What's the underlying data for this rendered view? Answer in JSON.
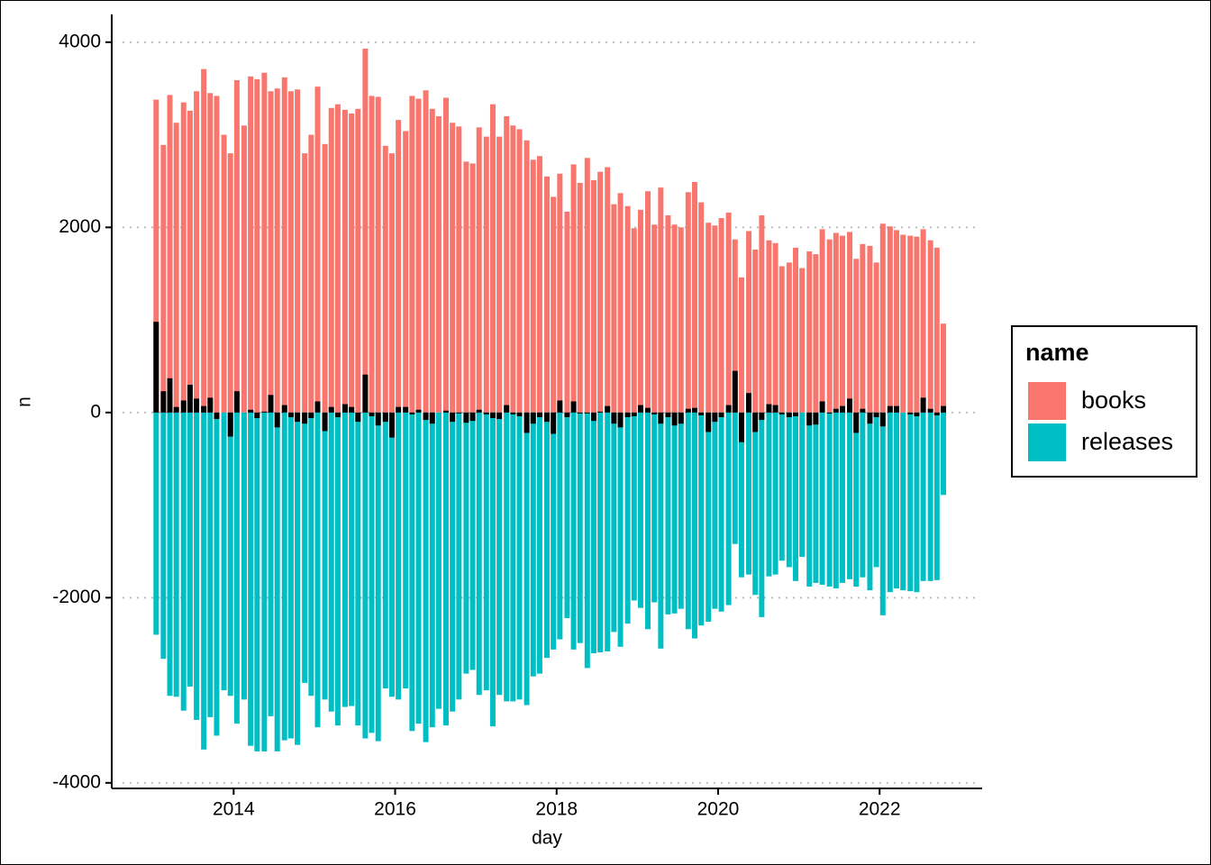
{
  "chart_data": {
    "type": "bar",
    "stacking": "diverging",
    "x_label": "day",
    "y_label": "n",
    "legend_title": "name",
    "x": [
      2013.04,
      2013.13,
      2013.21,
      2013.29,
      2013.38,
      2013.46,
      2013.54,
      2013.63,
      2013.71,
      2013.79,
      2013.88,
      2013.96,
      2014.04,
      2014.13,
      2014.21,
      2014.29,
      2014.38,
      2014.46,
      2014.54,
      2014.63,
      2014.71,
      2014.79,
      2014.88,
      2014.96,
      2015.04,
      2015.13,
      2015.21,
      2015.29,
      2015.38,
      2015.46,
      2015.54,
      2015.63,
      2015.71,
      2015.79,
      2015.88,
      2015.96,
      2016.04,
      2016.13,
      2016.21,
      2016.29,
      2016.38,
      2016.46,
      2016.54,
      2016.63,
      2016.71,
      2016.79,
      2016.88,
      2016.96,
      2017.04,
      2017.13,
      2017.21,
      2017.29,
      2017.38,
      2017.46,
      2017.54,
      2017.63,
      2017.71,
      2017.79,
      2017.88,
      2017.96,
      2018.04,
      2018.13,
      2018.21,
      2018.29,
      2018.38,
      2018.46,
      2018.54,
      2018.63,
      2018.71,
      2018.79,
      2018.88,
      2018.96,
      2019.04,
      2019.13,
      2019.21,
      2019.29,
      2019.38,
      2019.46,
      2019.54,
      2019.63,
      2019.71,
      2019.79,
      2019.88,
      2019.96,
      2020.04,
      2020.13,
      2020.21,
      2020.29,
      2020.38,
      2020.46,
      2020.54,
      2020.63,
      2020.71,
      2020.79,
      2020.88,
      2020.96,
      2021.04,
      2021.13,
      2021.21,
      2021.29,
      2021.38,
      2021.46,
      2021.54,
      2021.63,
      2021.71,
      2021.79,
      2021.88,
      2021.96,
      2022.04,
      2022.13,
      2022.21,
      2022.29,
      2022.38,
      2022.46,
      2022.54,
      2022.63,
      2022.71,
      2022.79
    ],
    "series": [
      {
        "name": "books",
        "color": "#f8766d",
        "values": [
          3380,
          2890,
          3430,
          3130,
          3350,
          3260,
          3470,
          3710,
          3450,
          3420,
          3000,
          2800,
          3590,
          3100,
          3630,
          3600,
          3670,
          3470,
          3500,
          3620,
          3470,
          3490,
          2800,
          3000,
          3520,
          2900,
          3290,
          3330,
          3270,
          3230,
          3280,
          3930,
          3420,
          3410,
          2880,
          2800,
          3160,
          3040,
          3420,
          3390,
          3480,
          3280,
          3200,
          3400,
          3130,
          3090,
          2710,
          2690,
          3080,
          2980,
          3330,
          2980,
          3200,
          3100,
          3060,
          2940,
          2730,
          2770,
          2550,
          2330,
          2580,
          2170,
          2680,
          2480,
          2750,
          2510,
          2600,
          2650,
          2250,
          2370,
          2230,
          1990,
          2190,
          2390,
          2030,
          2430,
          2130,
          2030,
          2000,
          2380,
          2490,
          2270,
          2050,
          2020,
          2100,
          2160,
          1870,
          1460,
          1960,
          1760,
          2130,
          1860,
          1830,
          1580,
          1620,
          1780,
          1560,
          1740,
          1710,
          1980,
          1870,
          1940,
          1910,
          1950,
          1660,
          1820,
          1800,
          1620,
          2040,
          2010,
          1970,
          1920,
          1910,
          1900,
          1980,
          1860,
          1780,
          960
        ]
      },
      {
        "name": "releases",
        "color": "#00bfc4",
        "values": [
          -2400,
          -2660,
          -3060,
          -3070,
          -3220,
          -2960,
          -3320,
          -3640,
          -3290,
          -3490,
          -3000,
          -3060,
          -3360,
          -3100,
          -3600,
          -3660,
          -3660,
          -3280,
          -3660,
          -3540,
          -3520,
          -3590,
          -2920,
          -3060,
          -3400,
          -3100,
          -3230,
          -3380,
          -3180,
          -3170,
          -3380,
          -3520,
          -3460,
          -3550,
          -2980,
          -3070,
          -3100,
          -2980,
          -3440,
          -3360,
          -3560,
          -3400,
          -3200,
          -3380,
          -3230,
          -3100,
          -2820,
          -2780,
          -3050,
          -3000,
          -3390,
          -3050,
          -3120,
          -3120,
          -3100,
          -3160,
          -2850,
          -2820,
          -2650,
          -2560,
          -2450,
          -2220,
          -2560,
          -2490,
          -2760,
          -2600,
          -2590,
          -2580,
          -2370,
          -2530,
          -2280,
          -2030,
          -2110,
          -2340,
          -2050,
          -2550,
          -2180,
          -2170,
          -2120,
          -2340,
          -2440,
          -2300,
          -2260,
          -2120,
          -2150,
          -2080,
          -1420,
          -1780,
          -1750,
          -1970,
          -2210,
          -1770,
          -1750,
          -1600,
          -1670,
          -1820,
          -1560,
          -1880,
          -1840,
          -1860,
          -1880,
          -1900,
          -1840,
          -1800,
          -1880,
          -1780,
          -1920,
          -1670,
          -2190,
          -1940,
          -1900,
          -1920,
          -1930,
          -1940,
          -1820,
          -1820,
          -1810,
          -890
        ]
      },
      {
        "color": "#000000",
        "values": [
          980,
          230,
          370,
          60,
          130,
          300,
          150,
          70,
          160,
          -70,
          0,
          -260,
          230,
          0,
          30,
          -60,
          10,
          190,
          -160,
          80,
          -50,
          -100,
          -120,
          -60,
          120,
          -200,
          60,
          -50,
          90,
          60,
          -100,
          410,
          -40,
          -140,
          -100,
          -270,
          60,
          60,
          -20,
          30,
          -80,
          -120,
          0,
          20,
          -100,
          -10,
          -110,
          -90,
          30,
          -20,
          -60,
          -70,
          80,
          -20,
          -40,
          -220,
          -120,
          -50,
          -100,
          -230,
          130,
          -50,
          120,
          -10,
          -10,
          -90,
          10,
          70,
          -120,
          -160,
          -50,
          -40,
          80,
          50,
          -20,
          -120,
          -50,
          -140,
          -120,
          40,
          50,
          -30,
          -210,
          -100,
          -50,
          80,
          450,
          -320,
          210,
          -210,
          -80,
          90,
          80,
          -20,
          -50,
          -40,
          0,
          -140,
          -130,
          120,
          -10,
          40,
          70,
          150,
          -220,
          40,
          -120,
          -50,
          -150,
          70,
          70,
          0,
          -20,
          -40,
          160,
          40,
          -30,
          70
        ]
      }
    ],
    "xlim": [
      2012.49,
      2023.27
    ],
    "xticks": [
      2014,
      2016,
      2018,
      2020,
      2022
    ],
    "ylim": [
      -4060,
      4300
    ],
    "yticks": [
      -4000,
      -2000,
      0,
      2000,
      4000
    ],
    "grid": true,
    "legend": "right"
  }
}
